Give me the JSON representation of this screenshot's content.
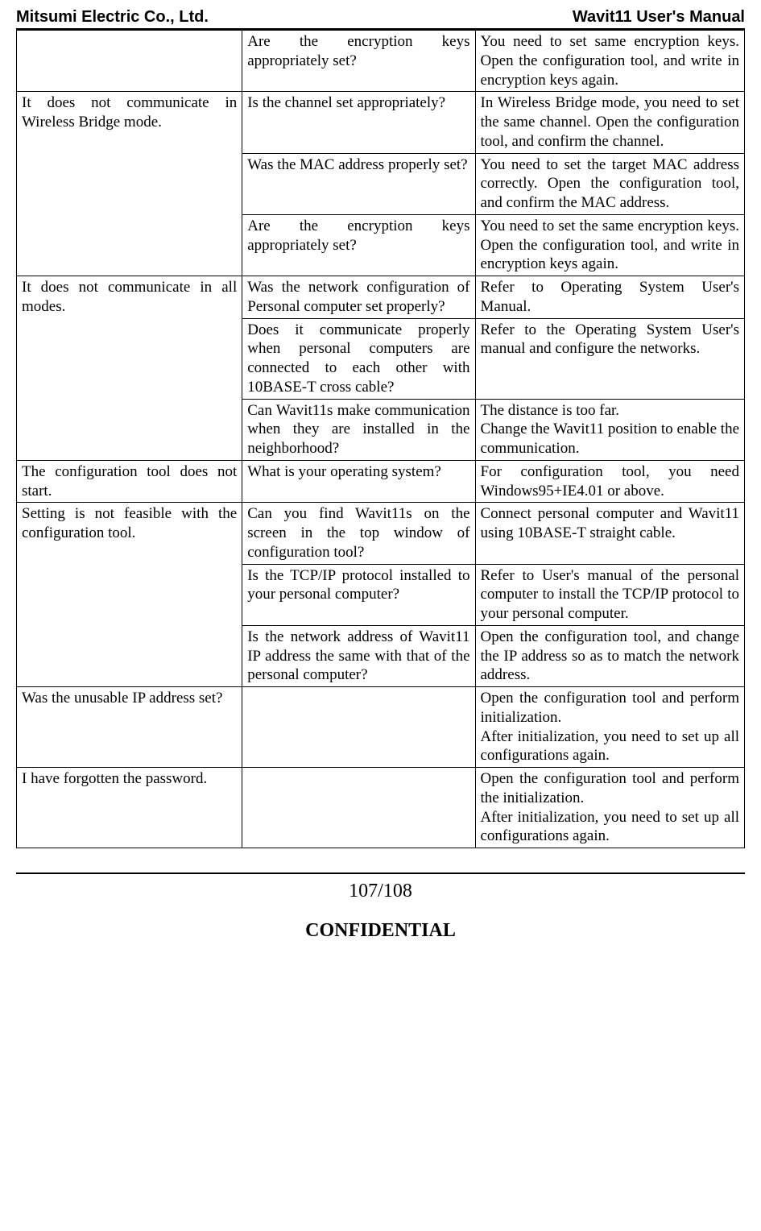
{
  "header": {
    "left": "Mitsumi Electric Co., Ltd.",
    "right": "Wavit11 User's Manual"
  },
  "table": {
    "rows": [
      {
        "c1": "",
        "c2": "Are the encryption keys appropriately set?",
        "c3": "You need to set same encryption keys. Open the configuration tool, and write in encryption keys again.",
        "c1rowspan": 1
      },
      {
        "c1": "It does not communicate in Wireless Bridge mode.",
        "c2": "Is the channel set appropriately?",
        "c3": "In Wireless Bridge mode, you need to set the same channel. Open the configuration tool, and confirm the channel.",
        "c1rowspan": 3
      },
      {
        "c2": "Was the MAC address properly set?",
        "c3": "You need to set the target MAC address correctly. Open the configuration tool, and confirm the MAC address."
      },
      {
        "c2": "Are the encryption keys appropriately set?",
        "c3": "You need to set the same encryption keys. Open the configuration tool, and write in encryption keys again."
      },
      {
        "c1": "It does not communicate in all modes.",
        "c2": "Was the network configuration of Personal computer set properly?",
        "c3": "Refer to Operating System User's Manual.",
        "c1rowspan": 3
      },
      {
        "c2": "Does it communicate properly when personal computers are connected to each other with 10BASE-T cross cable?",
        "c3": "Refer to the Operating System User's manual and configure the networks."
      },
      {
        "c2": "Can Wavit11s make communication when they are installed in the neighborhood?",
        "c3": "The distance is too far.\nChange the Wavit11 position to enable the communication."
      },
      {
        "c1": "The configuration tool does not start.",
        "c2": "What is your operating system?",
        "c3": "For configuration tool, you need Windows95+IE4.01 or above.",
        "c1rowspan": 1
      },
      {
        "c1": "Setting is not feasible with the configuration tool.",
        "c2": "Can you find Wavit11s on the screen in the top window of configuration tool?",
        "c3": "Connect personal computer and Wavit11 using 10BASE-T straight cable.",
        "c1rowspan": 3
      },
      {
        "c2": "Is the TCP/IP protocol installed to your personal computer?",
        "c3": "Refer to User's manual of the personal computer to install the TCP/IP protocol to your personal computer."
      },
      {
        "c2": "Is the network address of Wavit11 IP address the same with that of the personal computer?",
        "c3": "Open the configuration tool, and change the IP address so as to match the network address."
      },
      {
        "c1": "Was the unusable IP address set?",
        "c2": "",
        "c3": "Open the configuration tool and perform initialization.\nAfter initialization, you need to set up all configurations again.",
        "c1rowspan": 1
      },
      {
        "c1": "I have forgotten the password.",
        "c2": "",
        "c3": "Open the configuration tool and perform the initialization.\nAfter initialization, you need to set up all configurations again.",
        "c1rowspan": 1
      }
    ]
  },
  "footer": {
    "page": "107/108",
    "confidential": "CONFIDENTIAL"
  },
  "style": {
    "font_family": "Times New Roman",
    "header_font_family": "Arial",
    "header_fontsize_pt": 15,
    "body_fontsize_pt": 14,
    "footer_fontsize_pt": 18,
    "text_color": "#000000",
    "background_color": "#ffffff",
    "border_color": "#000000"
  }
}
